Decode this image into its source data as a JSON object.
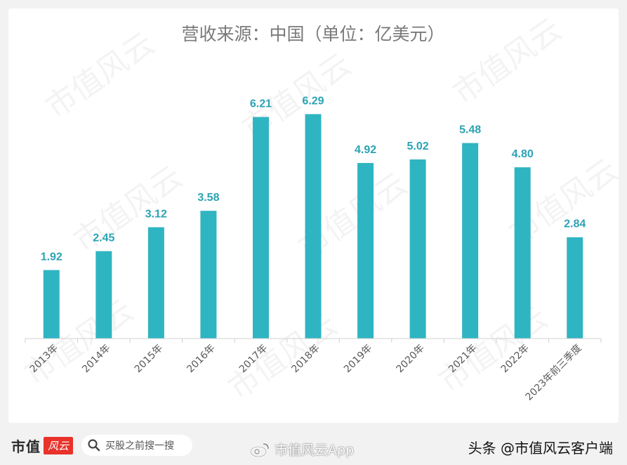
{
  "chart_data": {
    "type": "bar",
    "title": "营收来源：中国（单位：亿美元）",
    "categories": [
      "2013年",
      "2014年",
      "2015年",
      "2016年",
      "2017年",
      "2018年",
      "2019年",
      "2020年",
      "2021年",
      "2022年",
      "2023年前三季度"
    ],
    "values": [
      1.92,
      2.45,
      3.12,
      3.58,
      6.21,
      6.29,
      4.92,
      5.02,
      5.48,
      4.8,
      2.84
    ],
    "value_labels": [
      "1.92",
      "2.45",
      "3.12",
      "3.58",
      "6.21",
      "6.29",
      "4.92",
      "5.02",
      "5.48",
      "4.80",
      "2.84"
    ],
    "ylim": [
      0,
      7
    ],
    "xlabel": "",
    "ylabel": "",
    "grid": false,
    "bar_color": "#2fb4c2",
    "label_color": "#2aa3b3"
  },
  "watermark": "市值风云",
  "footer": {
    "brand_text": "市值",
    "brand_badge": "风云",
    "search_placeholder": "买股之前搜一搜",
    "weibo_text": "市值风云App",
    "toutiao_text": "头条 @市值风云客户端"
  }
}
